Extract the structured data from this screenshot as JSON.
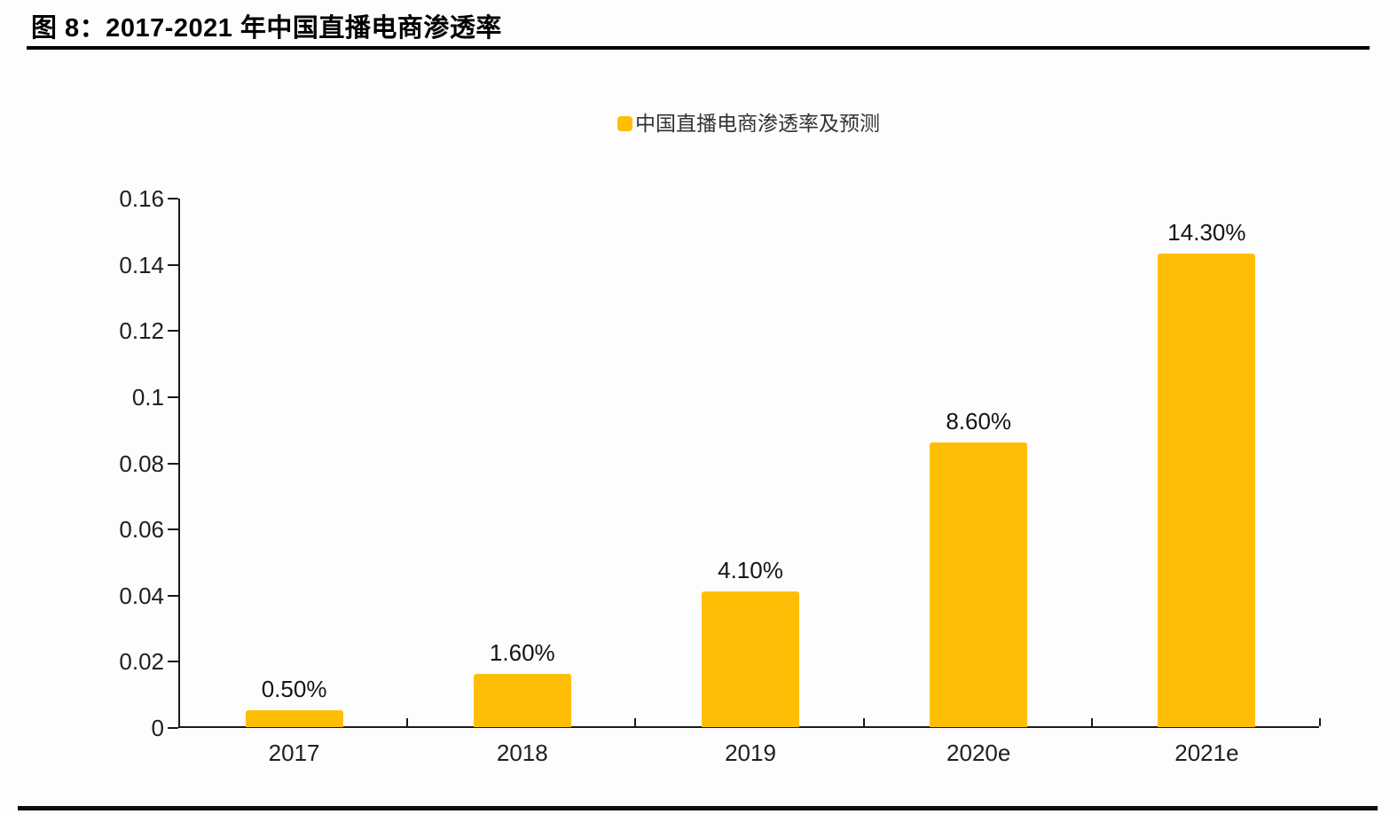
{
  "figure": {
    "title": "图 8：2017-2021 年中国直播电商渗透率"
  },
  "chart_data": {
    "type": "bar",
    "title": "图 8：2017-2021 年中国直播电商渗透率",
    "legend": [
      {
        "label": "中国直播电商渗透率及预测",
        "color": "#FFBE06"
      }
    ],
    "legend_position": "top-center",
    "categories": [
      "2017",
      "2018",
      "2019",
      "2020e",
      "2021e"
    ],
    "values": [
      0.005,
      0.016,
      0.041,
      0.086,
      0.143
    ],
    "data_labels": [
      "0.50%",
      "1.60%",
      "4.10%",
      "8.60%",
      "14.30%"
    ],
    "xlabel": "",
    "ylabel": "",
    "ylim": [
      0,
      0.16
    ],
    "ytick_values": [
      0,
      0.02,
      0.04,
      0.06,
      0.08,
      0.1,
      0.12,
      0.14,
      0.16
    ],
    "ytick_labels": [
      "0",
      "0.02",
      "0.04",
      "0.06",
      "0.08",
      "0.1",
      "0.12",
      "0.14",
      "0.16"
    ],
    "grid": false,
    "bar_color": "#FFBE06",
    "axis_color": "#1a1a1a"
  }
}
